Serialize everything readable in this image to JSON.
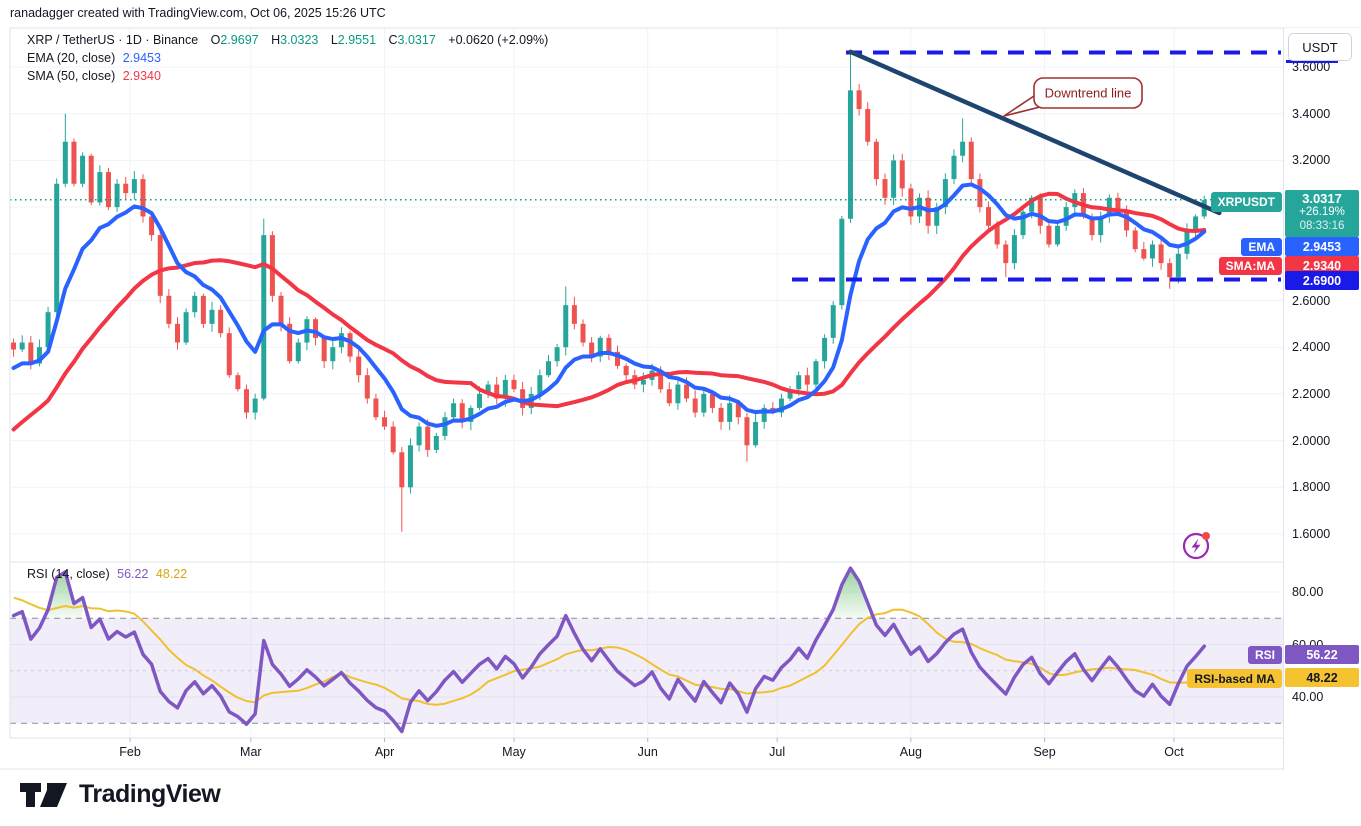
{
  "header": {
    "credit": "ranadagger created with TradingView.com, Oct 06, 2025 15:26 UTC"
  },
  "symbol_legend": {
    "title": "XRP / TetherUS · 1D · Binance",
    "o_label": "O",
    "o": "2.9697",
    "h_label": "H",
    "h": "3.0323",
    "l_label": "L",
    "l": "2.9551",
    "c_label": "C",
    "c": "3.0317",
    "change": "+0.0620 (+2.09%)"
  },
  "ema_legend": {
    "label": "EMA (20, close)",
    "value": "2.9453"
  },
  "sma_legend": {
    "label": "SMA (50, close)",
    "value": "2.9340"
  },
  "rsi_legend": {
    "label": "RSI (14, close)",
    "rsi_value": "56.22",
    "ma_value": "48.22"
  },
  "annotation": {
    "text": "Downtrend line"
  },
  "price_labels": {
    "symbol_tag": "XRPUSDT",
    "price": "3.0317",
    "change_pct": "+26.19%",
    "countdown": "08:33:16",
    "ema_tag": "EMA",
    "ema_value": "2.9453",
    "sma_tag": "SMA:MA",
    "sma_value": "2.9340",
    "level_value": "2.6900"
  },
  "rsi_labels": {
    "rsi_tag": "RSI",
    "rsi_value": "56.22",
    "ma_tag": "RSI-based MA",
    "ma_value": "48.22"
  },
  "price_axis": {
    "currency_button": "USDT",
    "ticks": [
      {
        "value": 3.6,
        "label": "3.6000"
      },
      {
        "value": 3.4,
        "label": "3.4000"
      },
      {
        "value": 3.2,
        "label": "3.2000"
      },
      {
        "value": 2.6,
        "label": "2.6000"
      },
      {
        "value": 2.4,
        "label": "2.4000"
      },
      {
        "value": 2.2,
        "label": "2.2000"
      },
      {
        "value": 2.0,
        "label": "2.0000"
      },
      {
        "value": 1.8,
        "label": "1.8000"
      },
      {
        "value": 1.6,
        "label": "1.6000"
      }
    ]
  },
  "rsi_axis": {
    "ticks": [
      {
        "value": 80,
        "label": "80.00"
      },
      {
        "value": 60,
        "label": "60.00"
      },
      {
        "value": 40,
        "label": "40.00"
      }
    ]
  },
  "time_axis": {
    "months": [
      {
        "label": "Feb",
        "day": 31
      },
      {
        "label": "Mar",
        "day": 59
      },
      {
        "label": "Apr",
        "day": 90
      },
      {
        "label": "May",
        "day": 120
      },
      {
        "label": "Jun",
        "day": 151
      },
      {
        "label": "Jul",
        "day": 181
      },
      {
        "label": "Aug",
        "day": 212
      },
      {
        "label": "Sep",
        "day": 243
      },
      {
        "label": "Oct",
        "day": 273
      }
    ]
  },
  "logo": {
    "text": "TradingView"
  },
  "colors": {
    "up": "#26a69a",
    "down": "#ef5350",
    "ema": "#2962ff",
    "sma": "#f23645",
    "trend_line": "#1e4470",
    "level_blue": "#1a1ae8",
    "current_teal": "#089981",
    "rsi": "#7e57c2",
    "rsi_ma": "#f0c030",
    "rsi_band": "rgba(126,87,194,0.10)",
    "grid": "#f0f3fa",
    "frame": "#e0e3eb",
    "dashed_gray": "#8a8e9b",
    "callout": "#a03030",
    "callout_text": "#8c1d1d",
    "overbought_fill": "#4caf50"
  },
  "chart_data": {
    "type": "candlestick",
    "title": "XRP / TetherUS · 1D · Binance",
    "symbol": "XRPUSDT",
    "interval": "1D",
    "exchange": "Binance",
    "last": {
      "open": 2.9697,
      "high": 3.0323,
      "low": 2.9551,
      "close": 3.0317,
      "change": "+0.0620 (+2.09%)",
      "change_from_low_pct": "+26.19%"
    },
    "ylim": [
      1.48,
      3.767
    ],
    "grid_step": 0.2,
    "x_months": [
      "Feb",
      "Mar",
      "Apr",
      "May",
      "Jun",
      "Jul",
      "Aug",
      "Sep",
      "Oct"
    ],
    "sample_days": 2,
    "start_day": 4,
    "pre_closes": [
      1.55,
      1.62,
      1.58,
      1.66,
      1.74,
      1.7,
      1.78,
      1.86,
      1.82,
      1.9,
      1.98,
      1.94,
      2.02,
      2.1,
      2.06,
      2.14,
      2.22,
      2.18,
      2.26,
      2.34,
      2.3,
      2.38,
      2.44,
      2.36,
      2.42
    ],
    "closes": [
      2.39,
      2.42,
      2.33,
      2.4,
      2.55,
      3.1,
      3.28,
      3.1,
      3.22,
      3.02,
      3.15,
      3.0,
      3.1,
      3.06,
      3.12,
      2.96,
      2.88,
      2.62,
      2.5,
      2.42,
      2.55,
      2.62,
      2.5,
      2.56,
      2.46,
      2.28,
      2.22,
      2.12,
      2.18,
      2.88,
      2.62,
      2.5,
      2.34,
      2.42,
      2.52,
      2.44,
      2.34,
      2.4,
      2.46,
      2.36,
      2.28,
      2.18,
      2.1,
      2.06,
      1.95,
      1.8,
      1.98,
      2.06,
      1.96,
      2.02,
      2.1,
      2.16,
      2.08,
      2.14,
      2.2,
      2.24,
      2.18,
      2.26,
      2.22,
      2.14,
      2.2,
      2.28,
      2.34,
      2.4,
      2.58,
      2.5,
      2.42,
      2.36,
      2.44,
      2.38,
      2.32,
      2.28,
      2.24,
      2.26,
      2.3,
      2.22,
      2.16,
      2.24,
      2.18,
      2.12,
      2.2,
      2.14,
      2.08,
      2.16,
      2.1,
      1.98,
      2.08,
      2.14,
      2.12,
      2.18,
      2.22,
      2.28,
      2.24,
      2.34,
      2.44,
      2.58,
      2.95,
      3.5,
      3.42,
      3.28,
      3.12,
      3.04,
      3.2,
      3.08,
      2.96,
      3.04,
      2.92,
      3.0,
      3.12,
      3.22,
      3.28,
      3.12,
      3.0,
      2.92,
      2.84,
      2.76,
      2.88,
      2.98,
      3.04,
      2.92,
      2.84,
      2.92,
      3.0,
      3.06,
      2.96,
      2.88,
      2.96,
      3.04,
      2.98,
      2.9,
      2.82,
      2.78,
      2.84,
      2.76,
      2.7,
      2.8,
      2.9,
      2.96,
      3.03
    ],
    "wick_overrides": {
      "6": {
        "h": 3.4
      },
      "29": {
        "h": 2.95
      },
      "45": {
        "l": 1.61
      },
      "64": {
        "h": 2.66
      },
      "85": {
        "l": 1.91
      },
      "97": {
        "h": 3.66
      },
      "110": {
        "h": 3.38
      },
      "115": {
        "l": 2.7
      },
      "134": {
        "l": 2.65
      }
    },
    "indicators": {
      "ema": {
        "period_days": 20,
        "period_samples": 10,
        "current": 2.9453
      },
      "sma": {
        "period_days": 50,
        "period_samples": 25,
        "current": 2.934
      }
    },
    "levels": {
      "resistance_dashed": 3.662,
      "support_dashed": 2.69,
      "current_price": 3.0317
    },
    "downtrend_line": {
      "from_day": 198,
      "from_price": 3.665,
      "to_day": 283.5,
      "to_price": 2.975
    },
    "rsi_pane": {
      "period_days": 14,
      "period_samples": 10,
      "ma_period_samples": 10,
      "current": 56.22,
      "ma_current": 48.22,
      "overbought": 70,
      "oversold": 30,
      "midline": 50,
      "ylim": [
        24.7,
        91
      ]
    }
  }
}
